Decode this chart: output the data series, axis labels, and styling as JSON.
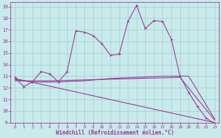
{
  "xlabel": "Windchill (Refroidissement éolien,°C)",
  "bg_color": "#c8eaea",
  "line_color": "#993399",
  "grid_color": "#a0cccc",
  "xlim": [
    -0.5,
    23.5
  ],
  "ylim": [
    9,
    19.4
  ],
  "yticks": [
    9,
    10,
    11,
    12,
    13,
    14,
    15,
    16,
    17,
    18,
    19
  ],
  "xticks": [
    0,
    1,
    2,
    3,
    4,
    5,
    6,
    7,
    8,
    9,
    10,
    11,
    12,
    13,
    14,
    15,
    16,
    17,
    18,
    19,
    20,
    21,
    22,
    23
  ],
  "series": [
    {
      "x": [
        0,
        1,
        2,
        3,
        4,
        5,
        6,
        7,
        8,
        9,
        10,
        11,
        12,
        13,
        14,
        15,
        16,
        17,
        18,
        19,
        20,
        21,
        22,
        23
      ],
      "y": [
        12.9,
        12.1,
        12.5,
        13.4,
        13.2,
        12.5,
        13.4,
        16.9,
        16.8,
        16.5,
        15.8,
        14.8,
        14.9,
        17.7,
        19.1,
        17.1,
        17.8,
        17.7,
        16.2,
        13.0,
        11.6,
        10.4,
        9.4,
        8.9
      ],
      "marker": true
    },
    {
      "x": [
        0,
        2,
        5,
        8,
        11,
        14,
        17,
        20,
        23
      ],
      "y": [
        12.7,
        12.5,
        12.5,
        12.6,
        12.8,
        12.9,
        13.0,
        13.0,
        9.3
      ],
      "marker": false
    },
    {
      "x": [
        0,
        23
      ],
      "y": [
        12.8,
        9.0
      ],
      "marker": false
    },
    {
      "x": [
        0,
        4,
        9,
        14,
        19,
        23
      ],
      "y": [
        12.6,
        12.6,
        12.7,
        12.8,
        12.9,
        9.2
      ],
      "marker": false
    }
  ]
}
